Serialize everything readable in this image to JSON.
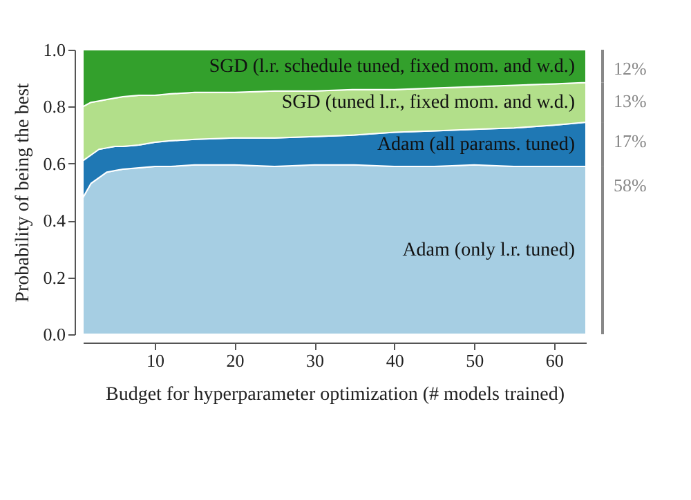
{
  "chart_data": {
    "type": "area",
    "stacked": true,
    "xlabel": "Budget for hyperparameter optimization (# models trained)",
    "ylabel": "Probability of being the best",
    "x": [
      1,
      2,
      3,
      4,
      5,
      6,
      8,
      10,
      12,
      15,
      20,
      25,
      30,
      35,
      40,
      45,
      50,
      55,
      60,
      64
    ],
    "series": [
      {
        "name": "Adam (only l.r. tuned)",
        "color": "#a6cee3",
        "values": [
          0.48,
          0.53,
          0.55,
          0.57,
          0.575,
          0.58,
          0.585,
          0.59,
          0.59,
          0.595,
          0.595,
          0.59,
          0.595,
          0.595,
          0.59,
          0.59,
          0.595,
          0.59,
          0.59,
          0.59
        ]
      },
      {
        "name": "Adam (all params. tuned)",
        "color": "#1f78b4",
        "values": [
          0.13,
          0.1,
          0.1,
          0.085,
          0.085,
          0.08,
          0.08,
          0.085,
          0.09,
          0.09,
          0.095,
          0.1,
          0.1,
          0.105,
          0.12,
          0.125,
          0.125,
          0.135,
          0.145,
          0.155
        ]
      },
      {
        "name": "SGD (tuned l.r., fixed mom. and w.d.)",
        "color": "#b2df8a",
        "values": [
          0.19,
          0.185,
          0.17,
          0.17,
          0.17,
          0.175,
          0.175,
          0.165,
          0.165,
          0.165,
          0.16,
          0.165,
          0.16,
          0.16,
          0.15,
          0.15,
          0.15,
          0.15,
          0.145,
          0.14
        ]
      },
      {
        "name": "SGD (l.r. schedule tuned, fixed mom. and w.d.)",
        "color": "#33a02c",
        "values": [
          0.2,
          0.185,
          0.18,
          0.175,
          0.17,
          0.165,
          0.16,
          0.16,
          0.155,
          0.15,
          0.15,
          0.145,
          0.145,
          0.14,
          0.14,
          0.135,
          0.13,
          0.125,
          0.12,
          0.115
        ]
      }
    ],
    "annotations": [
      "58%",
      "17%",
      "13%",
      "12%"
    ],
    "xlim": [
      1,
      64
    ],
    "xticks": [
      10,
      20,
      30,
      40,
      50,
      60
    ],
    "ylim": [
      0,
      1
    ],
    "yticks": [
      {
        "value": 0,
        "label": "0.0"
      },
      {
        "value": 0.2,
        "label": "0.2"
      },
      {
        "value": 0.4,
        "label": "0.4"
      },
      {
        "value": 0.6,
        "label": "0.6"
      },
      {
        "value": 0.8,
        "label": "0.8"
      },
      {
        "value": 1,
        "label": "1.0"
      }
    ],
    "grid": false,
    "legend": false
  }
}
